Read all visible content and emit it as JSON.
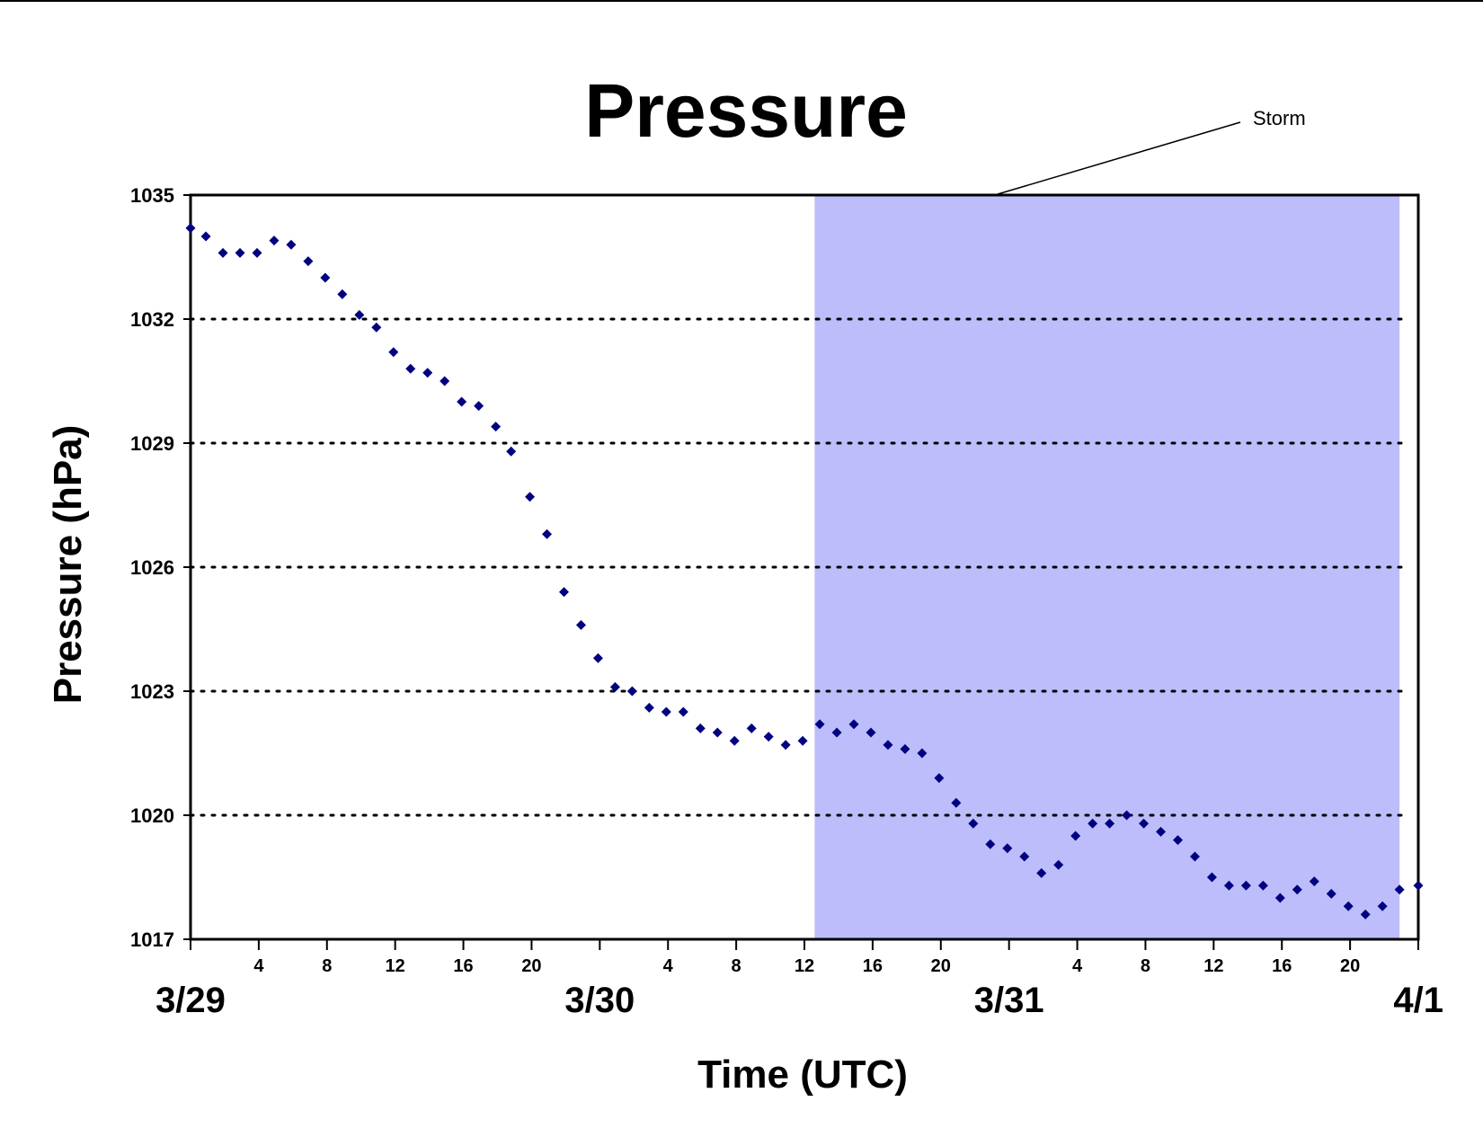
{
  "chart_data": {
    "type": "scatter",
    "title": "Pressure",
    "xlabel": "Time (UTC)",
    "ylabel": "Pressure (hPa)",
    "ylim": [
      1017,
      1035
    ],
    "yticks": [
      "1035",
      "1032",
      "1029",
      "1026",
      "1023",
      "1020",
      "1017"
    ],
    "x_unit": "hours from 3/29 00 UTC",
    "xlim": [
      0,
      72
    ],
    "hour_ticks": [
      {
        "x": 4,
        "label": "4"
      },
      {
        "x": 8,
        "label": "8"
      },
      {
        "x": 12,
        "label": "12"
      },
      {
        "x": 16,
        "label": "16"
      },
      {
        "x": 20,
        "label": "20"
      },
      {
        "x": 28,
        "label": "4"
      },
      {
        "x": 32,
        "label": "8"
      },
      {
        "x": 36,
        "label": "12"
      },
      {
        "x": 40,
        "label": "16"
      },
      {
        "x": 44,
        "label": "20"
      },
      {
        "x": 52,
        "label": "4"
      },
      {
        "x": 56,
        "label": "8"
      },
      {
        "x": 60,
        "label": "12"
      },
      {
        "x": 64,
        "label": "16"
      },
      {
        "x": 68,
        "label": "20"
      }
    ],
    "day_labels": [
      {
        "x": 0,
        "label": "3/29"
      },
      {
        "x": 24,
        "label": "3/30"
      },
      {
        "x": 48,
        "label": "3/31"
      },
      {
        "x": 72,
        "label": "4/1"
      }
    ],
    "grid": "horizontal dotted",
    "shaded_region": {
      "x_start": 36.6,
      "x_end": 70.9,
      "color": "#BDBDFB"
    },
    "annotation": {
      "text": "Storm"
    },
    "marker_color": "#000080",
    "points": [
      [
        0,
        1034.2
      ],
      [
        0.9,
        1034.0
      ],
      [
        1.9,
        1033.6
      ],
      [
        2.9,
        1033.6
      ],
      [
        3.9,
        1033.6
      ],
      [
        4.9,
        1033.9
      ],
      [
        5.9,
        1033.8
      ],
      [
        6.9,
        1033.4
      ],
      [
        7.9,
        1033.0
      ],
      [
        8.9,
        1032.6
      ],
      [
        9.9,
        1032.1
      ],
      [
        10.9,
        1031.8
      ],
      [
        11.9,
        1031.2
      ],
      [
        12.9,
        1030.8
      ],
      [
        13.9,
        1030.7
      ],
      [
        14.9,
        1030.5
      ],
      [
        15.9,
        1030.0
      ],
      [
        16.9,
        1029.9
      ],
      [
        17.9,
        1029.4
      ],
      [
        18.8,
        1028.8
      ],
      [
        19.9,
        1027.7
      ],
      [
        20.9,
        1026.8
      ],
      [
        21.9,
        1025.4
      ],
      [
        22.9,
        1024.6
      ],
      [
        23.9,
        1023.8
      ],
      [
        24.9,
        1023.1
      ],
      [
        25.9,
        1023.0
      ],
      [
        26.9,
        1022.6
      ],
      [
        27.9,
        1022.5
      ],
      [
        28.9,
        1022.5
      ],
      [
        29.9,
        1022.1
      ],
      [
        30.9,
        1022.0
      ],
      [
        31.9,
        1021.8
      ],
      [
        32.9,
        1022.1
      ],
      [
        33.9,
        1021.9
      ],
      [
        34.9,
        1021.7
      ],
      [
        35.9,
        1021.8
      ],
      [
        36.9,
        1022.2
      ],
      [
        37.9,
        1022.0
      ],
      [
        38.9,
        1022.2
      ],
      [
        39.9,
        1022.0
      ],
      [
        40.9,
        1021.7
      ],
      [
        41.9,
        1021.6
      ],
      [
        42.9,
        1021.5
      ],
      [
        43.9,
        1020.9
      ],
      [
        44.9,
        1020.3
      ],
      [
        45.9,
        1019.8
      ],
      [
        46.9,
        1019.3
      ],
      [
        47.9,
        1019.2
      ],
      [
        48.9,
        1019.0
      ],
      [
        49.9,
        1018.6
      ],
      [
        50.9,
        1018.8
      ],
      [
        51.9,
        1019.5
      ],
      [
        52.9,
        1019.8
      ],
      [
        53.9,
        1019.8
      ],
      [
        54.9,
        1020.0
      ],
      [
        55.9,
        1019.8
      ],
      [
        56.9,
        1019.6
      ],
      [
        57.9,
        1019.4
      ],
      [
        58.9,
        1019.0
      ],
      [
        59.9,
        1018.5
      ],
      [
        60.9,
        1018.3
      ],
      [
        61.9,
        1018.3
      ],
      [
        62.9,
        1018.3
      ],
      [
        63.9,
        1018.0
      ],
      [
        64.9,
        1018.2
      ],
      [
        65.9,
        1018.4
      ],
      [
        66.9,
        1018.1
      ],
      [
        67.9,
        1017.8
      ],
      [
        68.9,
        1017.6
      ],
      [
        69.9,
        1017.8
      ],
      [
        70.9,
        1018.2
      ],
      [
        72.0,
        1018.3
      ]
    ]
  }
}
